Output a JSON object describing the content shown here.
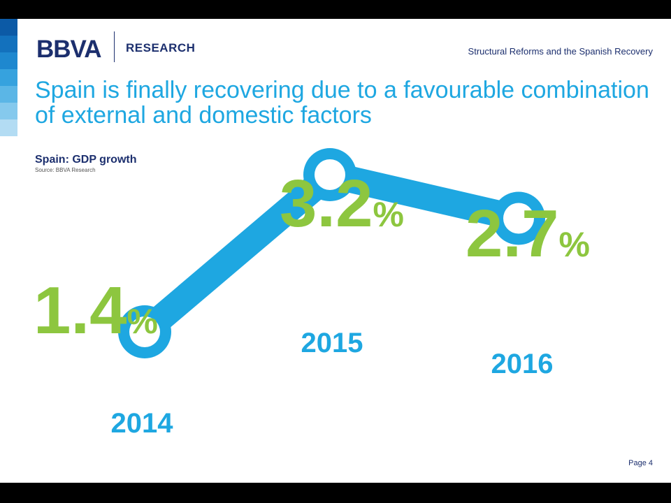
{
  "header": {
    "logo_text": "BBVA",
    "research_label": "RESEARCH",
    "presentation_title": "Structural Reforms and the Spanish Recovery"
  },
  "slide": {
    "title": "Spain is finally recovering due to a favourable combination of external and domestic factors",
    "page_label": "Page 4"
  },
  "colors": {
    "navy": "#1c2f6e",
    "blue": "#1ea7e1",
    "green": "#8dc63f",
    "stripes": [
      "#0c5aa6",
      "#1371bd",
      "#1e88cf",
      "#36a2de",
      "#5bb6e6",
      "#85c9ed",
      "#b3dcf3"
    ]
  },
  "chart_data": {
    "type": "line",
    "title": "Spain: GDP growth",
    "source": "Source: BBVA Research",
    "categories": [
      "2014",
      "2015",
      "2016"
    ],
    "values": [
      1.4,
      3.2,
      2.7
    ],
    "value_labels": [
      "1.4",
      "3.2",
      "2.7"
    ],
    "unit": "%"
  }
}
